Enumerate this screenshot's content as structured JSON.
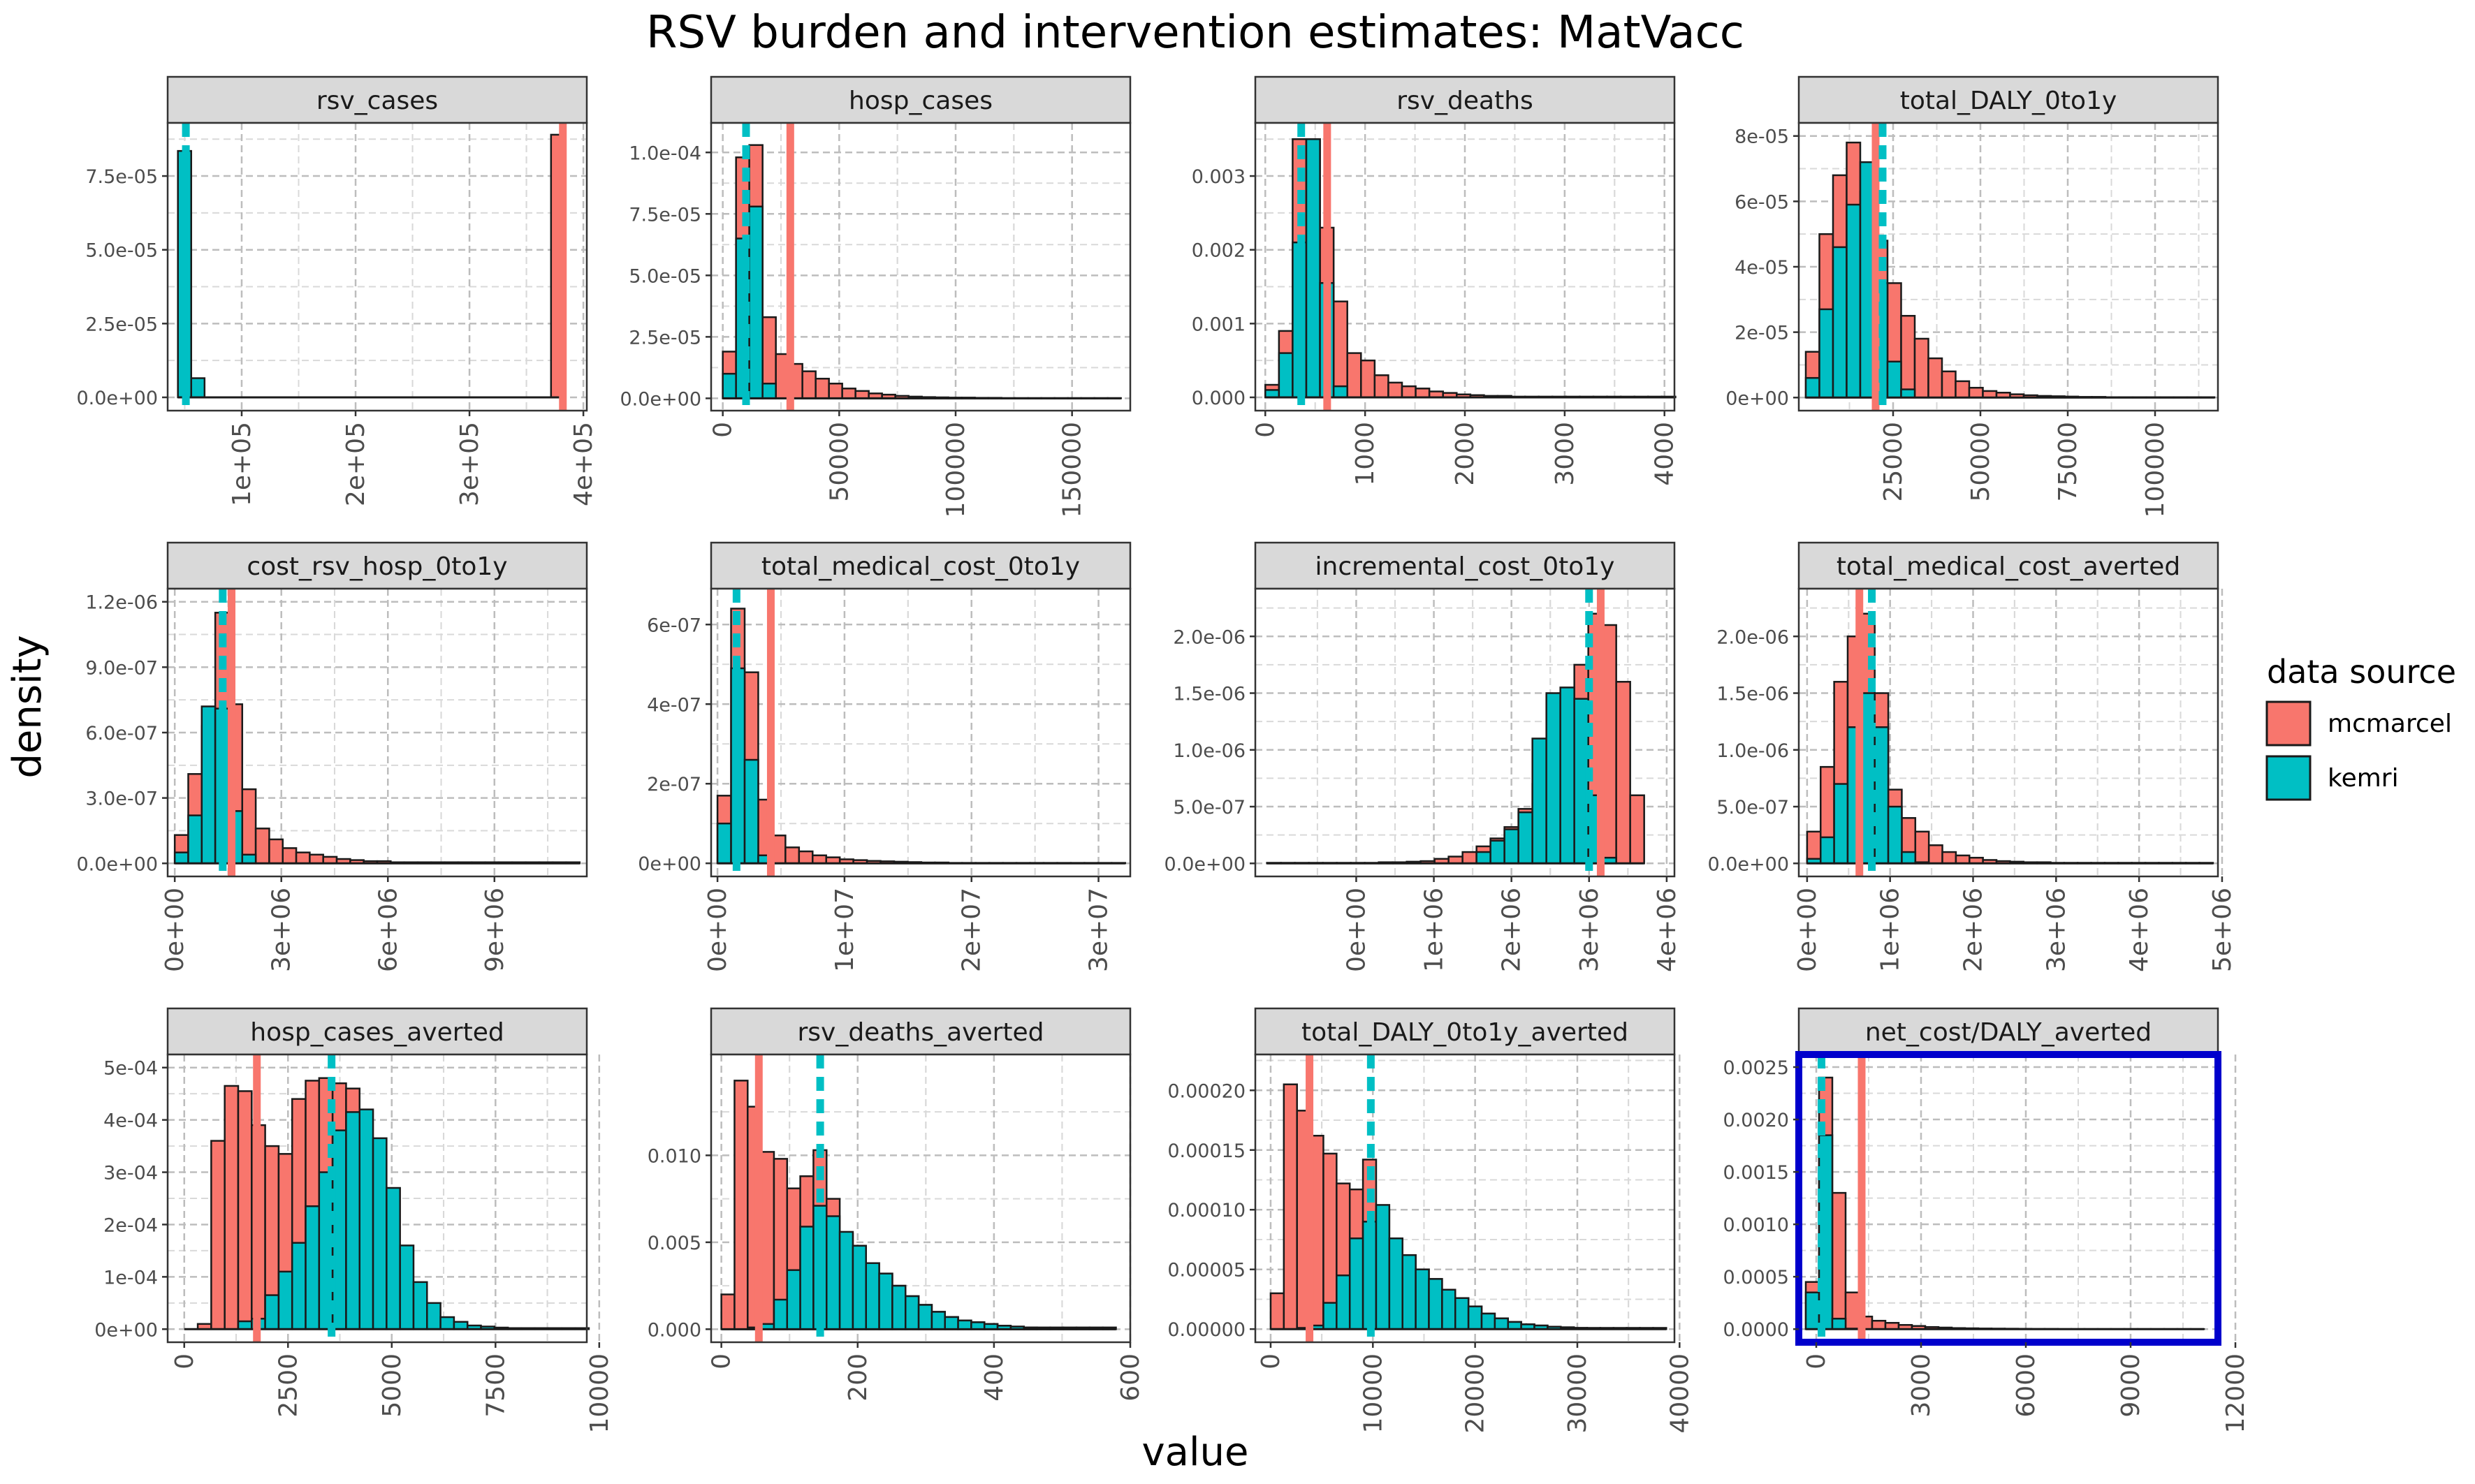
{
  "chart_data": {
    "type": "histogram-facets",
    "title": "RSV burden and intervention estimates: MatVacc",
    "xlabel": "value",
    "ylabel": "density",
    "grid": true,
    "legend": {
      "title": "data source",
      "placement": "right",
      "entries": [
        {
          "name": "mcmarcel",
          "color": "#F8766D"
        },
        {
          "name": "kemri",
          "color": "#00BFC4"
        }
      ]
    },
    "highlight_panel": "net_cost/DALY_averted",
    "highlight_color": "#0000CC",
    "panels": [
      {
        "title": "rsv_cases",
        "xlim": [
          35000,
          403000
        ],
        "ylim": [
          -4.5e-06,
          9.3e-05
        ],
        "yticks": [
          0,
          2.5e-05,
          5e-05,
          7.5e-05
        ],
        "ytick_labels": [
          "0.0e+00",
          "2.5e-05",
          "5.0e-05",
          "7.5e-05"
        ],
        "xticks": [
          100000,
          200000,
          300000,
          400000
        ],
        "xtick_labels": [
          "1e+05",
          "2e+05",
          "3e+05",
          "4e+05"
        ],
        "bin_start": 44000,
        "bin_width": 11700,
        "mcmarcel": [
          0,
          0,
          0,
          0,
          0,
          0,
          0,
          0,
          0,
          0,
          0,
          0,
          0,
          0,
          0,
          0,
          0,
          0,
          0,
          0,
          0,
          0,
          0,
          0,
          0,
          0,
          0,
          0,
          8.9e-05
        ],
        "kemri": [
          8.35e-05,
          6.5e-06
        ],
        "mcmarcel_mean": 382000,
        "kemri_mean": 51000
      },
      {
        "title": "hosp_cases",
        "xlim": [
          -5000,
          175000
        ],
        "ylim": [
          -5e-06,
          0.000112
        ],
        "yticks": [
          0,
          2.5e-05,
          5e-05,
          7.5e-05,
          0.0001
        ],
        "ytick_labels": [
          "0.0e+00",
          "2.5e-05",
          "5.0e-05",
          "7.5e-05",
          "1.0e-04"
        ],
        "xticks": [
          0,
          50000,
          100000,
          150000
        ],
        "xtick_labels": [
          "0",
          "50000",
          "100000",
          "150000"
        ],
        "bin_start": 0,
        "bin_width": 5700,
        "mcmarcel": [
          1.9e-05,
          9.8e-05,
          0.000103,
          3.3e-05,
          1.8e-05,
          1.4e-05,
          1.1e-05,
          8e-06,
          6e-06,
          4e-06,
          3e-06,
          2e-06,
          1.5e-06,
          1e-06,
          7e-07,
          5e-07,
          4e-07,
          3e-07,
          3e-07,
          2e-07,
          2e-07,
          1e-07,
          1e-07,
          1e-07,
          1e-07,
          1e-07,
          1e-07,
          1e-07,
          1e-07,
          1e-07
        ],
        "kemri": [
          1e-05,
          6.5e-05,
          7.8e-05,
          6e-06
        ],
        "mcmarcel_mean": 29000,
        "kemri_mean": 10000
      },
      {
        "title": "rsv_deaths",
        "xlim": [
          -100,
          4100
        ],
        "ylim": [
          -0.00018,
          0.00372
        ],
        "yticks": [
          0,
          0.001,
          0.002,
          0.003
        ],
        "ytick_labels": [
          "0.000",
          "0.001",
          "0.002",
          "0.003"
        ],
        "xticks": [
          0,
          1000,
          2000,
          3000,
          4000
        ],
        "xtick_labels": [
          "0",
          "1000",
          "2000",
          "3000",
          "4000"
        ],
        "bin_start": 0,
        "bin_width": 137,
        "mcmarcel": [
          0.00017,
          0.0009,
          0.0035,
          0.0035,
          0.0023,
          0.0013,
          0.0006,
          0.0005,
          0.0003,
          0.0002,
          0.00015,
          0.00012,
          8e-05,
          6e-05,
          4e-05,
          3e-05,
          2e-05,
          2e-05,
          1e-05,
          1e-05,
          1e-05,
          1e-05,
          1e-05,
          1e-05,
          1e-05,
          1e-05,
          1e-05,
          1e-05,
          1e-05,
          1e-05
        ],
        "kemri": [
          0.0001,
          0.0006,
          0.0021,
          0.0035,
          0.00155,
          0.00015
        ],
        "mcmarcel_mean": 620,
        "kemri_mean": 360
      },
      {
        "title": "total_DALY_0to1y",
        "xlim": [
          -2000,
          118000
        ],
        "ylim": [
          -4e-06,
          8.4e-05
        ],
        "yticks": [
          0,
          2e-05,
          4e-05,
          6e-05,
          8e-05
        ],
        "ytick_labels": [
          "0e+00",
          "2e-05",
          "4e-05",
          "6e-05",
          "8e-05"
        ],
        "xticks": [
          25000,
          50000,
          75000,
          100000
        ],
        "xtick_labels": [
          "25000",
          "50000",
          "75000",
          "100000"
        ],
        "bin_start": 0,
        "bin_width": 3900,
        "mcmarcel": [
          1.4e-05,
          5e-05,
          6.8e-05,
          7.8e-05,
          6.3e-05,
          4.8e-05,
          3.5e-05,
          2.5e-05,
          1.8e-05,
          1.2e-05,
          8e-06,
          5e-06,
          3e-06,
          2e-06,
          1.5e-06,
          1e-06,
          7e-07,
          5e-07,
          4e-07,
          3e-07,
          2e-07,
          2e-07,
          1e-07,
          1e-07,
          1e-07,
          1e-07,
          1e-07,
          1e-07,
          1e-07,
          1e-07
        ],
        "kemri": [
          6e-06,
          2.7e-05,
          4.6e-05,
          5.9e-05,
          7.2e-05,
          3.5e-05,
          1.1e-05,
          2.5e-06
        ],
        "mcmarcel_mean": 20000,
        "kemri_mean": 22000
      },
      {
        "title": "cost_rsv_hosp_0to1y",
        "xlim": [
          -200000.0,
          11600000.0
        ],
        "ylim": [
          -6e-08,
          1.26e-06
        ],
        "yticks": [
          0,
          3e-07,
          6e-07,
          9e-07,
          1.2e-06
        ],
        "ytick_labels": [
          "0.0e+00",
          "3.0e-07",
          "6.0e-07",
          "9.0e-07",
          "1.2e-06"
        ],
        "xticks": [
          0,
          3000000.0,
          6000000.0,
          9000000.0
        ],
        "xtick_labels": [
          "0e+00",
          "3e+06",
          "6e+06",
          "9e+06"
        ],
        "bin_start": 0,
        "bin_width": 380000,
        "mcmarcel": [
          1.3e-07,
          4.1e-07,
          6.3e-07,
          1.15e-06,
          7.3e-07,
          3.4e-07,
          1.6e-07,
          1.1e-07,
          7e-08,
          5e-08,
          4e-08,
          3e-08,
          2e-08,
          1.5e-08,
          1e-08,
          1e-08,
          5e-09,
          5e-09,
          5e-09,
          5e-09,
          5e-09,
          5e-09,
          5e-09,
          5e-09,
          5e-09,
          5e-09,
          5e-09,
          5e-09,
          5e-09,
          5e-09
        ],
        "kemri": [
          5e-08,
          2.2e-07,
          7.2e-07,
          7.1e-07,
          2.4e-07,
          4e-08
        ],
        "mcmarcel_mean": 1600000.0,
        "kemri_mean": 1350000.0
      },
      {
        "title": "total_medical_cost_0to1y",
        "xlim": [
          -500000.0,
          32500000.0
        ],
        "ylim": [
          -3.3e-08,
          6.9e-07
        ],
        "yticks": [
          0,
          2e-07,
          4e-07,
          6e-07
        ],
        "ytick_labels": [
          "0e+00",
          "2e-07",
          "4e-07",
          "6e-07"
        ],
        "xticks": [
          0,
          10000000.0,
          20000000.0,
          30000000.0
        ],
        "xtick_labels": [
          "0e+00",
          "1e+07",
          "2e+07",
          "3e+07"
        ],
        "bin_start": 0,
        "bin_width": 1070000,
        "mcmarcel": [
          1.7e-07,
          6.4e-07,
          4.8e-07,
          1.6e-07,
          7e-08,
          4e-08,
          3e-08,
          2e-08,
          1.5e-08,
          1e-08,
          8e-09,
          6e-09,
          5e-09,
          4e-09,
          3e-09,
          2e-09,
          2e-09,
          1e-09,
          1e-09,
          1e-09,
          1e-09,
          1e-09,
          1e-09,
          1e-09,
          1e-09,
          1e-09,
          1e-09,
          1e-09,
          1e-09,
          1e-09
        ],
        "kemri": [
          1e-07,
          4.9e-07,
          2.6e-07,
          2e-08
        ],
        "mcmarcel_mean": 4200000.0,
        "kemri_mean": 1500000.0
      },
      {
        "title": "incremental_cost_0to1y",
        "xlim": [
          -1300000.0,
          4100000.0
        ],
        "ylim": [
          -1.15e-07,
          2.42e-06
        ],
        "yticks": [
          0,
          5e-07,
          1e-06,
          1.5e-06,
          2e-06
        ],
        "ytick_labels": [
          "0.0e+00",
          "5.0e-07",
          "1.0e-06",
          "1.5e-06",
          "2.0e-06"
        ],
        "xticks": [
          0,
          1000000.0,
          2000000.0,
          3000000.0,
          4000000.0
        ],
        "xtick_labels": [
          "0e+00",
          "1e+06",
          "2e+06",
          "3e+06",
          "4e+06"
        ],
        "bin_start": -1150000.0,
        "bin_width": 180000,
        "mcmarcel": [
          5e-09,
          5e-09,
          5e-09,
          5e-09,
          5e-09,
          5e-09,
          5e-09,
          5e-09,
          1e-08,
          1e-08,
          1.5e-08,
          2e-08,
          4e-08,
          6e-08,
          1e-07,
          1.5e-07,
          2.2e-07,
          3.2e-07,
          4.8e-07,
          7e-07,
          1e-06,
          1.4e-06,
          1.75e-06,
          2.2e-06,
          2.1e-06,
          1.6e-06,
          6e-07
        ],
        "kemri": [
          0,
          0,
          0,
          0,
          0,
          0,
          0,
          0,
          0,
          0,
          0,
          0,
          0,
          0,
          0,
          1e-07,
          2e-07,
          3e-07,
          4.5e-07,
          1.1e-06,
          1.5e-06,
          1.55e-06,
          1.45e-06,
          6e-07,
          5e-08
        ],
        "mcmarcel_mean": 3150000.0,
        "kemri_mean": 3000000.0
      },
      {
        "title": "total_medical_cost_averted",
        "xlim": [
          -100000.0,
          4950000.0
        ],
        "ylim": [
          -1.15e-07,
          2.42e-06
        ],
        "yticks": [
          0,
          5e-07,
          1e-06,
          1.5e-06,
          2e-06
        ],
        "ytick_labels": [
          "0.0e+00",
          "5.0e-07",
          "1.0e-06",
          "1.5e-06",
          "2.0e-06"
        ],
        "xticks": [
          0,
          1000000.0,
          2000000.0,
          3000000.0,
          4000000.0,
          5000000.0
        ],
        "xtick_labels": [
          "0e+00",
          "1e+06",
          "2e+06",
          "3e+06",
          "4e+06",
          "5e+06"
        ],
        "bin_start": 0,
        "bin_width": 163000,
        "mcmarcel": [
          2.8e-07,
          8.5e-07,
          1.6e-06,
          2e-06,
          2.2e-06,
          1.5e-06,
          6.5e-07,
          4e-07,
          2.8e-07,
          1.6e-07,
          1e-07,
          7e-08,
          5e-08,
          3e-08,
          2e-08,
          1.5e-08,
          1e-08,
          1e-08,
          5e-09,
          5e-09,
          5e-09,
          5e-09,
          5e-09,
          5e-09,
          5e-09,
          5e-09,
          5e-09,
          5e-09,
          5e-09,
          5e-09
        ],
        "kemri": [
          4e-08,
          2.3e-07,
          7e-07,
          1.2e-06,
          1.5e-06,
          1.2e-06,
          5e-07,
          1e-07,
          1e-08
        ],
        "mcmarcel_mean": 630000,
        "kemri_mean": 780000
      },
      {
        "title": "hosp_cases_averted",
        "xlim": [
          -400,
          9700
        ],
        "ylim": [
          -2.5e-05,
          0.000525
        ],
        "yticks": [
          0,
          0.0001,
          0.0002,
          0.0003,
          0.0004,
          0.0005
        ],
        "ytick_labels": [
          "0e+00",
          "1e-04",
          "2e-04",
          "3e-04",
          "4e-04",
          "5e-04"
        ],
        "xticks": [
          0,
          2500,
          5000,
          7500,
          10000
        ],
        "xtick_labels": [
          "0",
          "2500",
          "5000",
          "7500",
          "10000"
        ],
        "bin_start": 0,
        "bin_width": 325,
        "mcmarcel": [
          0,
          1e-05,
          0.00036,
          0.000465,
          0.000455,
          0.00039,
          0.00035,
          0.000335,
          0.00044,
          0.000475,
          0.00048,
          0.00047,
          0.00046,
          0.000365,
          0.00027,
          0.00016,
          9e-05,
          5e-05,
          2.3e-05,
          1.4e-05,
          7e-06,
          5e-06,
          3e-06,
          2e-06,
          2e-06,
          2e-06,
          2e-06,
          2e-06,
          2e-06,
          2e-06
        ],
        "kemri": [
          0,
          0,
          0,
          0,
          1.5e-05,
          2e-05,
          6.5e-05,
          0.00011,
          0.000165,
          0.000235,
          0.0003,
          0.00038,
          0.000415,
          0.00042,
          0.000365,
          0.00027,
          0.00016,
          9e-05,
          5e-05,
          2.3e-05,
          1.4e-05,
          7e-06,
          5e-06,
          3e-06
        ],
        "mcmarcel_mean": 1750,
        "kemri_mean": 3550
      },
      {
        "title": "rsv_deaths_averted",
        "xlim": [
          -15,
          600
        ],
        "ylim": [
          -0.00075,
          0.0158
        ],
        "yticks": [
          0,
          0.005,
          0.01
        ],
        "ytick_labels": [
          "0.000",
          "0.005",
          "0.010"
        ],
        "xticks": [
          0,
          200,
          400,
          600
        ],
        "xtick_labels": [
          "0",
          "200",
          "400",
          "600"
        ],
        "bin_start": 0,
        "bin_width": 19.3,
        "mcmarcel": [
          0.002,
          0.0143,
          0.0128,
          0.0102,
          0.0098,
          0.0081,
          0.0088,
          0.0103,
          0.0075,
          0.0055,
          0.0048,
          0.0038,
          0.0032,
          0.0025,
          0.0019,
          0.0014,
          0.001,
          0.0007,
          0.0005,
          0.0004,
          0.0003,
          0.0002,
          0.00015,
          0.0001,
          0.0001,
          0.0001,
          0.0001,
          0.0001,
          0.0001,
          0.0001
        ],
        "kemri": [
          0,
          0,
          0.0001,
          0.0003,
          0.0017,
          0.0034,
          0.0059,
          0.0071,
          0.0065,
          0.0056,
          0.0048,
          0.0038,
          0.0032,
          0.0025,
          0.0019,
          0.0014,
          0.001,
          0.0007,
          0.0005,
          0.0004,
          0.0003,
          0.0002,
          0.00015,
          0.0001
        ],
        "mcmarcel_mean": 55,
        "kemri_mean": 145
      },
      {
        "title": "total_DALY_0to1y_averted",
        "xlim": [
          -1500,
          39500
        ],
        "ylim": [
          -1.1e-05,
          0.00023
        ],
        "yticks": [
          0,
          5e-05,
          0.0001,
          0.00015,
          0.0002
        ],
        "ytick_labels": [
          "0.00000",
          "0.00005",
          "0.00010",
          "0.00015",
          "0.00020"
        ],
        "xticks": [
          0,
          10000,
          20000,
          30000,
          40000
        ],
        "xtick_labels": [
          "0",
          "10000",
          "20000",
          "30000",
          "40000"
        ],
        "bin_start": 0,
        "bin_width": 1290,
        "mcmarcel": [
          3e-05,
          0.000205,
          0.000183,
          0.000162,
          0.000147,
          0.000122,
          0.000117,
          0.000142,
          0.0001,
          7.6e-05,
          6.2e-05,
          5e-05,
          4.2e-05,
          3.3e-05,
          2.6e-05,
          1.9e-05,
          1.3e-05,
          9e-06,
          6e-06,
          4e-06,
          3e-06,
          2e-06,
          1.5e-06,
          1e-06,
          1e-06,
          1e-06,
          1e-06,
          1e-06,
          1e-06,
          1e-06
        ],
        "kemri": [
          0,
          0,
          1e-06,
          3e-06,
          2.2e-05,
          4.5e-05,
          7.6e-05,
          9e-05,
          0.000104,
          7.6e-05,
          6.2e-05,
          5e-05,
          4.2e-05,
          3.3e-05,
          2.6e-05,
          1.9e-05,
          1.3e-05,
          9e-06,
          6e-06,
          4e-06,
          3e-06,
          2e-06,
          1.5e-06,
          1e-06
        ],
        "mcmarcel_mean": 3800,
        "kemri_mean": 9800
      },
      {
        "title": "net_cost/DALY_averted",
        "xlim": [
          -500,
          11500
        ],
        "ylim": [
          -0.000125,
          0.00262
        ],
        "yticks": [
          0,
          0.0005,
          0.001,
          0.0015,
          0.002,
          0.0025
        ],
        "ytick_labels": [
          "0.0000",
          "0.0005",
          "0.0010",
          "0.0015",
          "0.0020",
          "0.0025"
        ],
        "xticks": [
          0,
          3000,
          6000,
          9000,
          12000
        ],
        "xtick_labels": [
          "0",
          "3000",
          "6000",
          "9000",
          "12000"
        ],
        "bin_start": -300,
        "bin_width": 380,
        "mcmarcel": [
          0.00045,
          0.0024,
          0.0013,
          0.00035,
          0.00012,
          8e-05,
          6e-05,
          4e-05,
          3e-05,
          2e-05,
          1.5e-05,
          1e-05,
          8e-06,
          6e-06,
          5e-06,
          4e-06,
          3e-06,
          2e-06,
          2e-06,
          1e-06,
          1e-06,
          1e-06,
          1e-06,
          1e-06,
          1e-06,
          1e-06,
          1e-06,
          1e-06,
          1e-06,
          1e-06
        ],
        "kemri": [
          0.00035,
          0.00185,
          0.0001,
          5e-06
        ],
        "mcmarcel_mean": 1300,
        "kemri_mean": 150
      }
    ]
  }
}
